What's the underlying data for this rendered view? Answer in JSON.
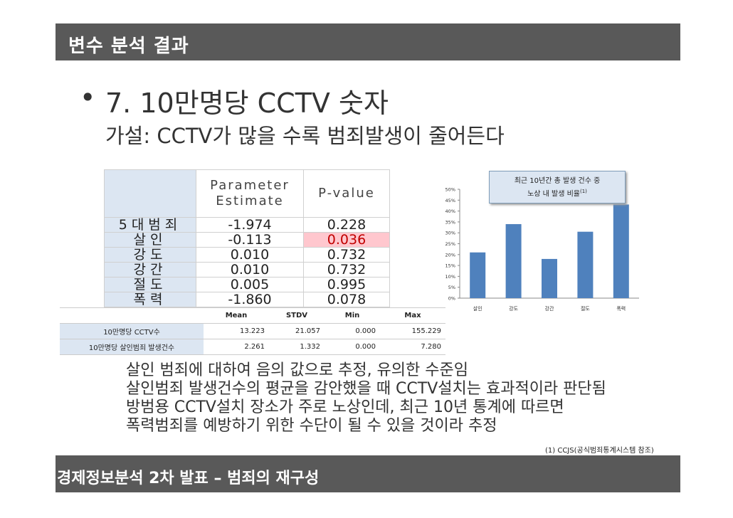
{
  "header": {
    "title": "변수 분석 결과"
  },
  "slide": {
    "bullet_mark": "•",
    "bullet": "7. 10만명당 CCTV 숫자",
    "hypothesis": "가설: CCTV가 많을 수록 범죄발생이 줄어든다"
  },
  "parameter_table": {
    "col_estimate_line1": "Parameter",
    "col_estimate_line2": "Estimate",
    "col_pvalue": "P-value",
    "rows": [
      {
        "label": "5대범죄",
        "estimate": "-1.974",
        "pvalue": "0.228",
        "highlight": false
      },
      {
        "label": "살인",
        "estimate": "-0.113",
        "pvalue": "0.036",
        "highlight": true
      },
      {
        "label": "강도",
        "estimate": "0.010",
        "pvalue": "0.732",
        "highlight": false
      },
      {
        "label": "강간",
        "estimate": "0.010",
        "pvalue": "0.732",
        "highlight": false
      },
      {
        "label": "절도",
        "estimate": "0.005",
        "pvalue": "0.995",
        "highlight": false
      },
      {
        "label": "폭력",
        "estimate": "-1.860",
        "pvalue": "0.078",
        "highlight": false
      }
    ]
  },
  "summary_table": {
    "headers": [
      "Mean",
      "STDV",
      "Min",
      "Max"
    ],
    "rows": [
      {
        "label": "10만명당 CCTV수",
        "mean": "13.223",
        "stdv": "21.057",
        "min": "0.000",
        "max": "155.229"
      },
      {
        "label": "10만명당 살인범죄 발생건수",
        "mean": "2.261",
        "stdv": "1.332",
        "min": "0.000",
        "max": "7.280"
      }
    ]
  },
  "chart_title": {
    "line1": "최근 10년간 총 발생 건수 중",
    "line2": "노상 내 발생 비율",
    "sup": "(1)"
  },
  "chart_data": {
    "type": "bar",
    "categories": [
      "살인",
      "강도",
      "강간",
      "절도",
      "폭력"
    ],
    "values": [
      21,
      34,
      18,
      30.5,
      43
    ],
    "ylim": [
      0,
      50
    ],
    "ytick_labels": [
      "0%",
      "5%",
      "10%",
      "15%",
      "20%",
      "25%",
      "30%",
      "35%",
      "40%",
      "45%",
      "50%"
    ],
    "bar_color": "#4f81bd",
    "grid": false
  },
  "conclusion": [
    "살인 범죄에 대하여 음의 값으로 추정, 유의한 수준임",
    "살인범죄 발생건수의 평균을 감안했을 때 CCTV설치는 효과적이라 판단됨",
    "방범용 CCTV설치 장소가 주로 노상인데, 최근 10년 통계에 따르면",
    "폭력범죄를 예방하기 위한 수단이 될 수 있을 것이라 추정"
  ],
  "footnote": "(1) CCJS(공식범죄통계시스템 참조)",
  "footer": {
    "text": "경제정보분석  2차 발표 – 범죄의 재구성"
  }
}
